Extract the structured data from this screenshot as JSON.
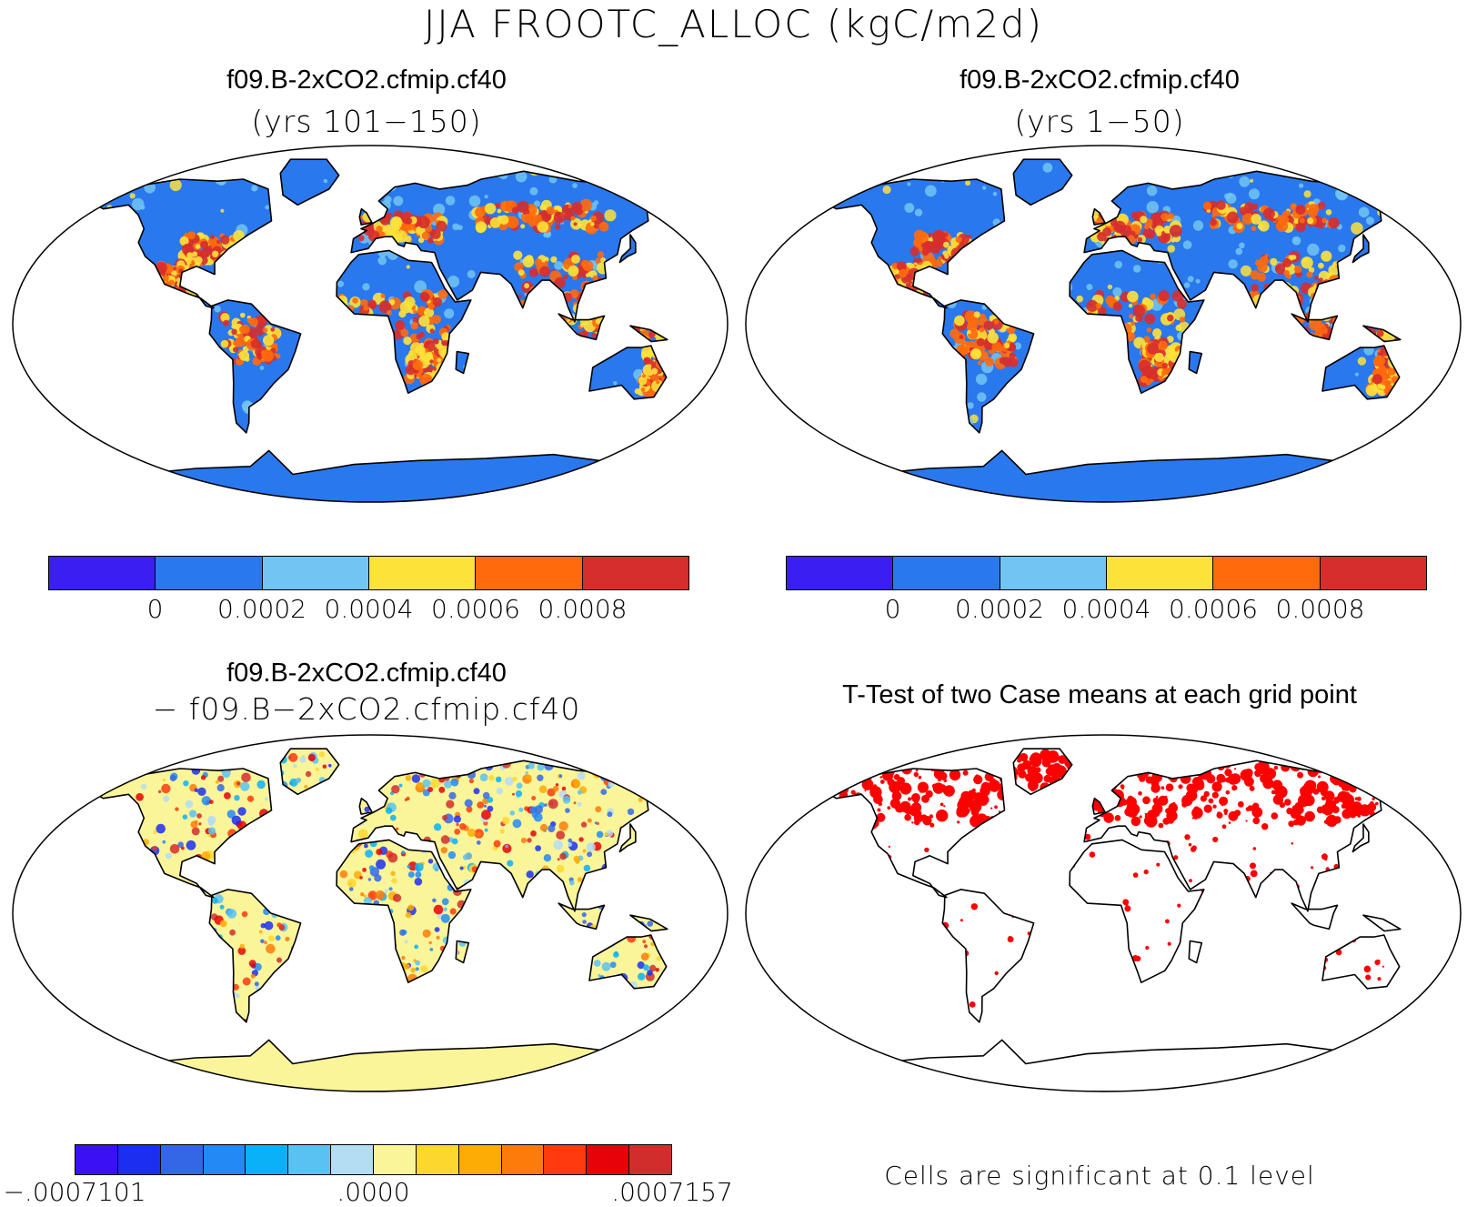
{
  "title": "JJA FROOTC_ALLOC (kgC/m2d)",
  "panels": [
    {
      "id": "case1",
      "title": "f09.B-2xCO2.cfmip.cf40",
      "subtitle": "(yrs 101−150)",
      "fill": "field"
    },
    {
      "id": "case2",
      "title": "f09.B-2xCO2.cfmip.cf40",
      "subtitle": "(yrs 1−50)",
      "fill": "field"
    },
    {
      "id": "diff",
      "title": "f09.B-2xCO2.cfmip.cf40",
      "subtitle": "− f09.B−2xCO2.cfmip.cf40",
      "fill": "diff"
    },
    {
      "id": "ttest",
      "title": "T-Test of two Case means at each grid point",
      "subtitle": "",
      "fill": "sig"
    }
  ],
  "colorbars": {
    "field": {
      "colors": [
        "#3b1ff2",
        "#2a78ee",
        "#72c4f2",
        "#fde23a",
        "#ff6a0d",
        "#d62d2d"
      ],
      "tick_labels": [
        "0",
        "0.0002",
        "0.0004",
        "0.0006",
        "0.0008"
      ]
    },
    "diff": {
      "colors": [
        "#3b10f5",
        "#1c2ff0",
        "#3467e6",
        "#2289f5",
        "#0ab0f8",
        "#5ac2f2",
        "#b4dcf2",
        "#fbf59a",
        "#fcd72e",
        "#fdac05",
        "#fd7b0b",
        "#fe3a0e",
        "#e60208",
        "#d22d2d"
      ],
      "tick_labels": [
        "−.0007101",
        ".0000",
        ".0007157"
      ]
    }
  },
  "significance": {
    "color": "#ff0000",
    "note": "Cells are significant at 0.1 level"
  },
  "colors": {
    "land_base": "#2a78ee",
    "ocean": "#ffffff",
    "diff_base": "#fbf59a",
    "coast": "#000000"
  }
}
